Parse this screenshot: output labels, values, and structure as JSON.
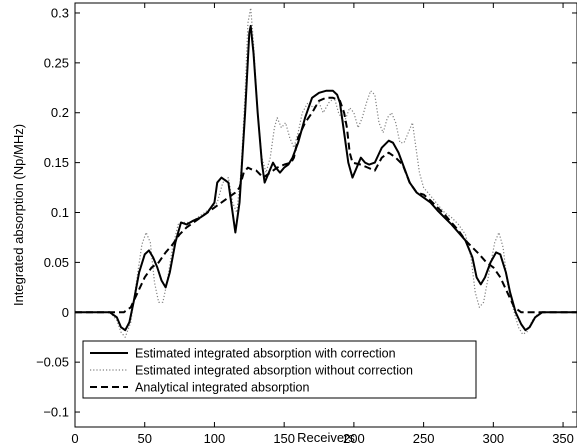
{
  "chart_data": {
    "type": "line",
    "title": "",
    "xlabel": "Receivers",
    "ylabel": "Integrated absorption (Np/MHz)",
    "xlim": [
      0,
      360
    ],
    "ylim": [
      -0.115,
      0.31
    ],
    "xticks": [
      0,
      50,
      100,
      150,
      200,
      250,
      300,
      350
    ],
    "yticks": [
      -0.1,
      -0.05,
      0,
      0.05,
      0.1,
      0.15,
      0.2,
      0.25,
      0.3
    ],
    "xtick_labels": [
      "0",
      "50",
      "100",
      "150",
      "200",
      "250",
      "300",
      "350"
    ],
    "ytick_labels": [
      "−0.1",
      "−0.05",
      "0",
      "0.05",
      "0.1",
      "0.15",
      "0.2",
      "0.25",
      "0.3"
    ],
    "grid": false,
    "legend_position": "bottom-left",
    "series": [
      {
        "name": "Estimated integrated absorption with correction",
        "style": "solid",
        "color": "#000000",
        "points": [
          [
            0,
            0
          ],
          [
            25,
            0
          ],
          [
            30,
            -0.005
          ],
          [
            33,
            -0.015
          ],
          [
            36,
            -0.018
          ],
          [
            39,
            -0.01
          ],
          [
            42,
            0.01
          ],
          [
            46,
            0.04
          ],
          [
            50,
            0.058
          ],
          [
            53,
            0.062
          ],
          [
            56,
            0.055
          ],
          [
            59,
            0.045
          ],
          [
            62,
            0.032
          ],
          [
            65,
            0.025
          ],
          [
            68,
            0.04
          ],
          [
            72,
            0.07
          ],
          [
            76,
            0.09
          ],
          [
            80,
            0.088
          ],
          [
            85,
            0.092
          ],
          [
            90,
            0.095
          ],
          [
            95,
            0.1
          ],
          [
            100,
            0.11
          ],
          [
            102,
            0.13
          ],
          [
            105,
            0.135
          ],
          [
            110,
            0.13
          ],
          [
            113,
            0.1
          ],
          [
            115,
            0.08
          ],
          [
            118,
            0.11
          ],
          [
            122,
            0.2
          ],
          [
            125,
            0.28
          ],
          [
            126,
            0.287
          ],
          [
            128,
            0.26
          ],
          [
            131,
            0.2
          ],
          [
            134,
            0.15
          ],
          [
            136,
            0.13
          ],
          [
            139,
            0.14
          ],
          [
            142,
            0.15
          ],
          [
            144,
            0.145
          ],
          [
            147,
            0.14
          ],
          [
            150,
            0.145
          ],
          [
            153,
            0.148
          ],
          [
            156,
            0.155
          ],
          [
            160,
            0.17
          ],
          [
            165,
            0.195
          ],
          [
            170,
            0.215
          ],
          [
            175,
            0.22
          ],
          [
            180,
            0.222
          ],
          [
            185,
            0.222
          ],
          [
            188,
            0.218
          ],
          [
            190,
            0.21
          ],
          [
            193,
            0.18
          ],
          [
            196,
            0.15
          ],
          [
            199,
            0.135
          ],
          [
            202,
            0.145
          ],
          [
            205,
            0.155
          ],
          [
            208,
            0.15
          ],
          [
            211,
            0.148
          ],
          [
            215,
            0.15
          ],
          [
            220,
            0.165
          ],
          [
            225,
            0.172
          ],
          [
            228,
            0.17
          ],
          [
            232,
            0.16
          ],
          [
            236,
            0.145
          ],
          [
            240,
            0.13
          ],
          [
            245,
            0.12
          ],
          [
            250,
            0.115
          ],
          [
            255,
            0.11
          ],
          [
            260,
            0.102
          ],
          [
            265,
            0.095
          ],
          [
            270,
            0.088
          ],
          [
            275,
            0.08
          ],
          [
            280,
            0.072
          ],
          [
            285,
            0.055
          ],
          [
            288,
            0.035
          ],
          [
            291,
            0.028
          ],
          [
            294,
            0.035
          ],
          [
            298,
            0.05
          ],
          [
            302,
            0.06
          ],
          [
            305,
            0.058
          ],
          [
            309,
            0.04
          ],
          [
            312,
            0.02
          ],
          [
            316,
            0.0
          ],
          [
            320,
            -0.012
          ],
          [
            323,
            -0.018
          ],
          [
            326,
            -0.015
          ],
          [
            330,
            -0.005
          ],
          [
            335,
            0
          ],
          [
            360,
            0
          ]
        ]
      },
      {
        "name": "Estimated integrated absorption without correction",
        "style": "dotted",
        "color": "#808080",
        "points": [
          [
            0,
            0
          ],
          [
            25,
            0
          ],
          [
            30,
            -0.008
          ],
          [
            33,
            -0.02
          ],
          [
            36,
            -0.025
          ],
          [
            40,
            -0.01
          ],
          [
            44,
            0.03
          ],
          [
            48,
            0.068
          ],
          [
            51,
            0.08
          ],
          [
            54,
            0.07
          ],
          [
            57,
            0.03
          ],
          [
            60,
            0.01
          ],
          [
            63,
            0.01
          ],
          [
            66,
            0.03
          ],
          [
            70,
            0.065
          ],
          [
            74,
            0.088
          ],
          [
            78,
            0.09
          ],
          [
            83,
            0.09
          ],
          [
            88,
            0.095
          ],
          [
            93,
            0.1
          ],
          [
            98,
            0.105
          ],
          [
            102,
            0.11
          ],
          [
            106,
            0.13
          ],
          [
            110,
            0.135
          ],
          [
            113,
            0.11
          ],
          [
            116,
            0.1
          ],
          [
            119,
            0.14
          ],
          [
            122,
            0.22
          ],
          [
            124,
            0.29
          ],
          [
            126,
            0.305
          ],
          [
            128,
            0.27
          ],
          [
            131,
            0.2
          ],
          [
            134,
            0.155
          ],
          [
            137,
            0.14
          ],
          [
            140,
            0.155
          ],
          [
            143,
            0.185
          ],
          [
            145,
            0.195
          ],
          [
            148,
            0.185
          ],
          [
            151,
            0.19
          ],
          [
            154,
            0.175
          ],
          [
            157,
            0.165
          ],
          [
            160,
            0.18
          ],
          [
            163,
            0.2
          ],
          [
            167,
            0.21
          ],
          [
            171,
            0.205
          ],
          [
            175,
            0.21
          ],
          [
            178,
            0.2
          ],
          [
            182,
            0.21
          ],
          [
            186,
            0.215
          ],
          [
            189,
            0.2
          ],
          [
            193,
            0.19
          ],
          [
            197,
            0.205
          ],
          [
            200,
            0.2
          ],
          [
            203,
            0.185
          ],
          [
            206,
            0.195
          ],
          [
            209,
            0.21
          ],
          [
            212,
            0.222
          ],
          [
            215,
            0.218
          ],
          [
            218,
            0.19
          ],
          [
            221,
            0.18
          ],
          [
            224,
            0.195
          ],
          [
            227,
            0.2
          ],
          [
            230,
            0.19
          ],
          [
            233,
            0.17
          ],
          [
            236,
            0.17
          ],
          [
            239,
            0.18
          ],
          [
            242,
            0.19
          ],
          [
            244,
            0.17
          ],
          [
            247,
            0.14
          ],
          [
            250,
            0.125
          ],
          [
            253,
            0.12
          ],
          [
            256,
            0.115
          ],
          [
            260,
            0.108
          ],
          [
            265,
            0.1
          ],
          [
            270,
            0.095
          ],
          [
            275,
            0.088
          ],
          [
            280,
            0.078
          ],
          [
            284,
            0.055
          ],
          [
            287,
            0.02
          ],
          [
            290,
            0.005
          ],
          [
            293,
            0.01
          ],
          [
            297,
            0.04
          ],
          [
            301,
            0.07
          ],
          [
            304,
            0.08
          ],
          [
            307,
            0.065
          ],
          [
            310,
            0.03
          ],
          [
            314,
            0.005
          ],
          [
            318,
            -0.015
          ],
          [
            321,
            -0.022
          ],
          [
            324,
            -0.02
          ],
          [
            328,
            -0.008
          ],
          [
            333,
            0
          ],
          [
            360,
            0
          ]
        ]
      },
      {
        "name": "Analytical integrated absorption",
        "style": "dashed",
        "color": "#000000",
        "points": [
          [
            0,
            0
          ],
          [
            35,
            0
          ],
          [
            40,
            0.005
          ],
          [
            45,
            0.02
          ],
          [
            50,
            0.035
          ],
          [
            55,
            0.045
          ],
          [
            60,
            0.05
          ],
          [
            65,
            0.06
          ],
          [
            70,
            0.068
          ],
          [
            75,
            0.078
          ],
          [
            80,
            0.085
          ],
          [
            85,
            0.09
          ],
          [
            90,
            0.095
          ],
          [
            95,
            0.1
          ],
          [
            100,
            0.105
          ],
          [
            105,
            0.11
          ],
          [
            110,
            0.115
          ],
          [
            115,
            0.12
          ],
          [
            118,
            0.125
          ],
          [
            121,
            0.14
          ],
          [
            124,
            0.145
          ],
          [
            127,
            0.143
          ],
          [
            130,
            0.142
          ],
          [
            135,
            0.135
          ],
          [
            140,
            0.14
          ],
          [
            145,
            0.145
          ],
          [
            150,
            0.148
          ],
          [
            155,
            0.15
          ],
          [
            157,
            0.155
          ],
          [
            160,
            0.175
          ],
          [
            165,
            0.19
          ],
          [
            170,
            0.2
          ],
          [
            175,
            0.212
          ],
          [
            180,
            0.215
          ],
          [
            185,
            0.215
          ],
          [
            190,
            0.212
          ],
          [
            193,
            0.2
          ],
          [
            195,
            0.185
          ],
          [
            197,
            0.16
          ],
          [
            199,
            0.15
          ],
          [
            205,
            0.148
          ],
          [
            210,
            0.145
          ],
          [
            215,
            0.142
          ],
          [
            220,
            0.155
          ],
          [
            225,
            0.16
          ],
          [
            230,
            0.155
          ],
          [
            235,
            0.148
          ],
          [
            240,
            0.13
          ],
          [
            245,
            0.12
          ],
          [
            250,
            0.118
          ],
          [
            255,
            0.112
          ],
          [
            260,
            0.105
          ],
          [
            265,
            0.098
          ],
          [
            270,
            0.09
          ],
          [
            275,
            0.082
          ],
          [
            280,
            0.072
          ],
          [
            285,
            0.065
          ],
          [
            290,
            0.058
          ],
          [
            295,
            0.05
          ],
          [
            300,
            0.045
          ],
          [
            305,
            0.035
          ],
          [
            310,
            0.02
          ],
          [
            315,
            0.005
          ],
          [
            320,
            0
          ],
          [
            360,
            0
          ]
        ]
      }
    ]
  }
}
